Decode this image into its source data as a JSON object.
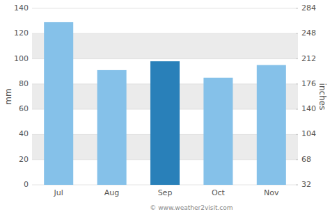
{
  "chart_data": {
    "type": "bar",
    "categories": [
      "Jul",
      "Aug",
      "Sep",
      "Oct",
      "Nov"
    ],
    "values": [
      129,
      91,
      98,
      85,
      95
    ],
    "colors": [
      "#85c1e9",
      "#85c1e9",
      "#2980b9",
      "#85c1e9",
      "#85c1e9"
    ],
    "ylabel": "mm",
    "y2label": "inches",
    "ylim": [
      0,
      140
    ],
    "yticks": [
      0,
      20,
      40,
      60,
      80,
      100,
      120,
      140
    ],
    "y2lim": [
      32,
      284
    ],
    "y2ticks": [
      32,
      68,
      104,
      140,
      176,
      212,
      248,
      284
    ],
    "grid": true,
    "annotation": "© www.weather2visit.com"
  }
}
